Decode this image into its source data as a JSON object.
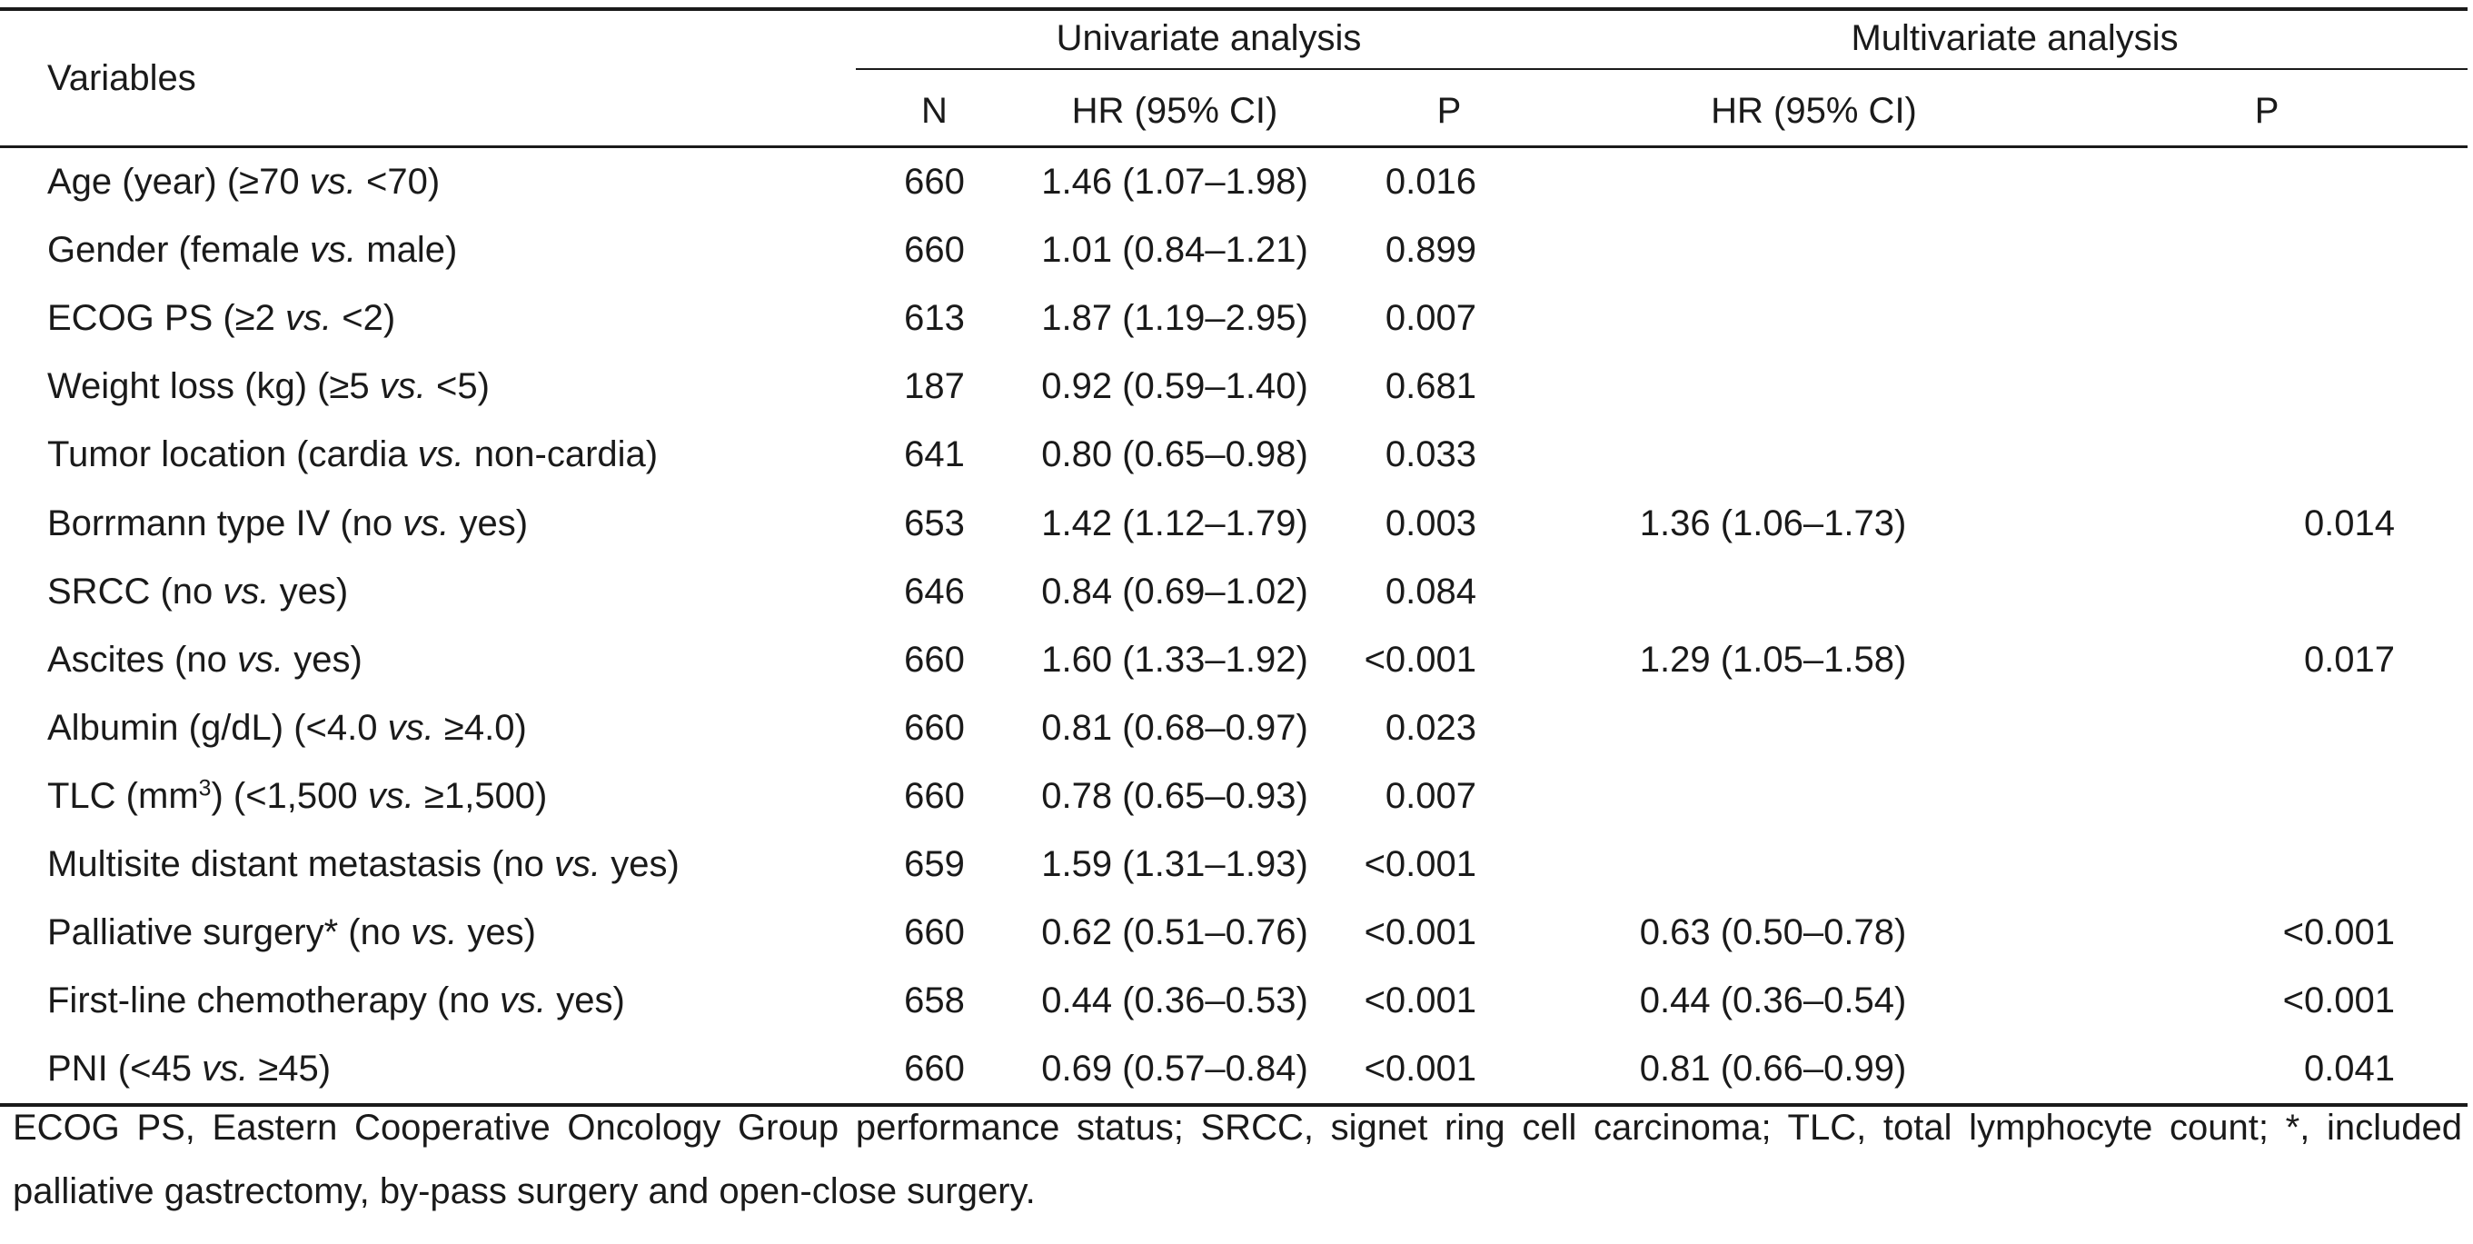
{
  "table": {
    "headers": {
      "variables": "Variables",
      "univariate_group": "Univariate analysis",
      "multivariate_group": "Multivariate analysis",
      "n": "N",
      "hr_uni": "HR (95% CI)",
      "p_uni": "P",
      "hr_multi": "HR (95% CI)",
      "p_multi": "P"
    },
    "rows": [
      {
        "var_pre": "Age (year) (≥70 ",
        "var_vs": "vs.",
        "var_post": " <70)",
        "var_sup": "",
        "var_tail": "",
        "n": "660",
        "hr_uni": "1.46 (1.07–1.98)",
        "p_uni": "0.016",
        "hr_multi": "",
        "p_multi": ""
      },
      {
        "var_pre": "Gender (female ",
        "var_vs": "vs.",
        "var_post": " male)",
        "var_sup": "",
        "var_tail": "",
        "n": "660",
        "hr_uni": "1.01 (0.84–1.21)",
        "p_uni": "0.899",
        "hr_multi": "",
        "p_multi": ""
      },
      {
        "var_pre": "ECOG PS (≥2 ",
        "var_vs": "vs.",
        "var_post": " <2)",
        "var_sup": "",
        "var_tail": "",
        "n": "613",
        "hr_uni": "1.87 (1.19–2.95)",
        "p_uni": "0.007",
        "hr_multi": "",
        "p_multi": ""
      },
      {
        "var_pre": "Weight loss (kg) (≥5 ",
        "var_vs": "vs.",
        "var_post": " <5)",
        "var_sup": "",
        "var_tail": "",
        "n": "187",
        "hr_uni": "0.92 (0.59–1.40)",
        "p_uni": "0.681",
        "hr_multi": "",
        "p_multi": ""
      },
      {
        "var_pre": "Tumor location (cardia ",
        "var_vs": "vs.",
        "var_post": " non-cardia)",
        "var_sup": "",
        "var_tail": "",
        "n": "641",
        "hr_uni": "0.80 (0.65–0.98)",
        "p_uni": "0.033",
        "hr_multi": "",
        "p_multi": ""
      },
      {
        "var_pre": "Borrmann type IV (no ",
        "var_vs": "vs.",
        "var_post": " yes)",
        "var_sup": "",
        "var_tail": "",
        "n": "653",
        "hr_uni": "1.42 (1.12–1.79)",
        "p_uni": "0.003",
        "hr_multi": "1.36 (1.06–1.73)",
        "p_multi": "0.014"
      },
      {
        "var_pre": "SRCC (no ",
        "var_vs": "vs.",
        "var_post": " yes)",
        "var_sup": "",
        "var_tail": "",
        "n": "646",
        "hr_uni": "0.84 (0.69–1.02)",
        "p_uni": "0.084",
        "hr_multi": "",
        "p_multi": ""
      },
      {
        "var_pre": "Ascites (no ",
        "var_vs": "vs.",
        "var_post": " yes)",
        "var_sup": "",
        "var_tail": "",
        "n": "660",
        "hr_uni": "1.60 (1.33–1.92)",
        "p_uni": "<0.001",
        "hr_multi": "1.29 (1.05–1.58)",
        "p_multi": "0.017"
      },
      {
        "var_pre": "Albumin (g/dL) (<4.0 ",
        "var_vs": "vs.",
        "var_post": " ≥4.0)",
        "var_sup": "",
        "var_tail": "",
        "n": "660",
        "hr_uni": "0.81 (0.68–0.97)",
        "p_uni": "0.023",
        "hr_multi": "",
        "p_multi": ""
      },
      {
        "var_pre": "TLC (mm",
        "var_sup": "3",
        "var_tail": ") (<1,500 ",
        "var_vs": "vs.",
        "var_post": " ≥1,500)",
        "n": "660",
        "hr_uni": "0.78 (0.65–0.93)",
        "p_uni": "0.007",
        "hr_multi": "",
        "p_multi": ""
      },
      {
        "var_pre": "Multisite distant metastasis (no ",
        "var_vs": "vs.",
        "var_post": " yes)",
        "var_sup": "",
        "var_tail": "",
        "n": "659",
        "hr_uni": "1.59 (1.31–1.93)",
        "p_uni": "<0.001",
        "hr_multi": "",
        "p_multi": ""
      },
      {
        "var_pre": "Palliative surgery* (no ",
        "var_vs": "vs.",
        "var_post": " yes)",
        "var_sup": "",
        "var_tail": "",
        "n": "660",
        "hr_uni": "0.62 (0.51–0.76)",
        "p_uni": "<0.001",
        "hr_multi": "0.63 (0.50–0.78)",
        "p_multi": "<0.001"
      },
      {
        "var_pre": "First-line chemotherapy (no ",
        "var_vs": "vs.",
        "var_post": " yes)",
        "var_sup": "",
        "var_tail": "",
        "n": "658",
        "hr_uni": "0.44 (0.36–0.53)",
        "p_uni": "<0.001",
        "hr_multi": "0.44 (0.36–0.54)",
        "p_multi": "<0.001"
      },
      {
        "var_pre": "PNI (<45 ",
        "var_vs": "vs.",
        "var_post": " ≥45)",
        "var_sup": "",
        "var_tail": "",
        "n": "660",
        "hr_uni": "0.69 (0.57–0.84)",
        "p_uni": "<0.001",
        "hr_multi": "0.81 (0.66–0.99)",
        "p_multi": "0.041"
      }
    ]
  },
  "footnote": "ECOG PS, Eastern Cooperative Oncology Group performance status; SRCC, signet ring cell carcinoma; TLC, total lymphocyte count; *, included palliative gastrectomy, by-pass surgery and open-close surgery."
}
